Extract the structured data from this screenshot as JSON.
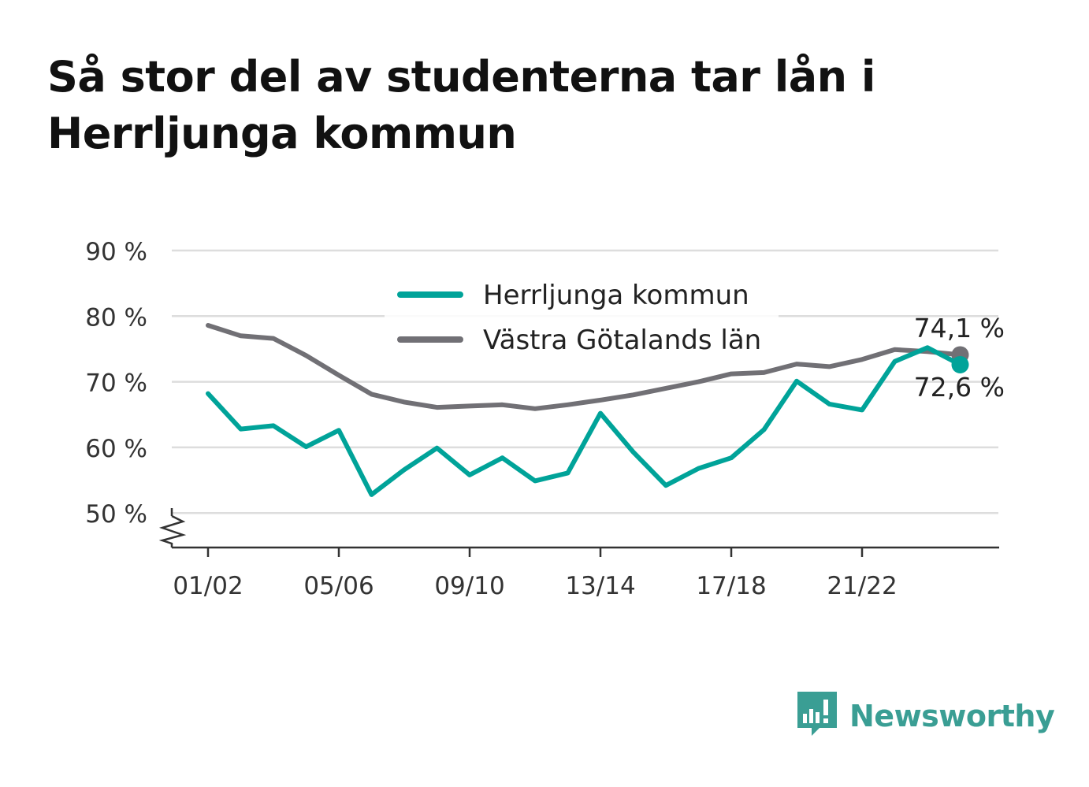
{
  "title": "Så stor del av studenterna tar lån i Herrljunga kommun",
  "brand": {
    "name": "Newsworthy",
    "color": "#3a9e94",
    "icon": "newsworthy-logo-icon"
  },
  "chart_data": {
    "type": "line",
    "title": "Så stor del av studenterna tar lån i Herrljunga kommun",
    "x": [
      "01/02",
      "02/03",
      "03/04",
      "04/05",
      "05/06",
      "06/07",
      "07/08",
      "08/09",
      "09/10",
      "10/11",
      "11/12",
      "12/13",
      "13/14",
      "14/15",
      "15/16",
      "16/17",
      "17/18",
      "18/19",
      "19/20",
      "20/21",
      "21/22",
      "22/23",
      "23/24",
      "24/25"
    ],
    "x_tick_labels": [
      "01/02",
      "05/06",
      "09/10",
      "13/14",
      "17/18",
      "21/22"
    ],
    "y_tick_labels": [
      "50 %",
      "60 %",
      "70 %",
      "80 %",
      "90 %"
    ],
    "y_ticks": [
      50,
      60,
      70,
      80,
      90
    ],
    "ylim": [
      45,
      90
    ],
    "y_axis_break": true,
    "grid": true,
    "legend_position": "top-center",
    "series": [
      {
        "name": "Herrljunga kommun",
        "color": "#00a399",
        "values": [
          68.2,
          62.8,
          63.3,
          60.1,
          62.6,
          52.8,
          56.6,
          59.9,
          55.8,
          58.4,
          54.9,
          56.1,
          65.2,
          59.3,
          54.2,
          56.8,
          58.4,
          62.7,
          70.1,
          66.6,
          65.7,
          73.1,
          75.2,
          72.6
        ],
        "end_label": "72,6 %"
      },
      {
        "name": "Västra Götalands län",
        "color": "#717075",
        "values": [
          78.6,
          77.0,
          76.6,
          74.0,
          71.0,
          68.1,
          66.9,
          66.1,
          66.3,
          66.5,
          65.9,
          66.5,
          67.2,
          68.0,
          69.0,
          70.0,
          71.2,
          71.4,
          72.7,
          72.3,
          73.4,
          74.9,
          74.6,
          74.1
        ],
        "end_label": "74,1 %"
      }
    ]
  }
}
